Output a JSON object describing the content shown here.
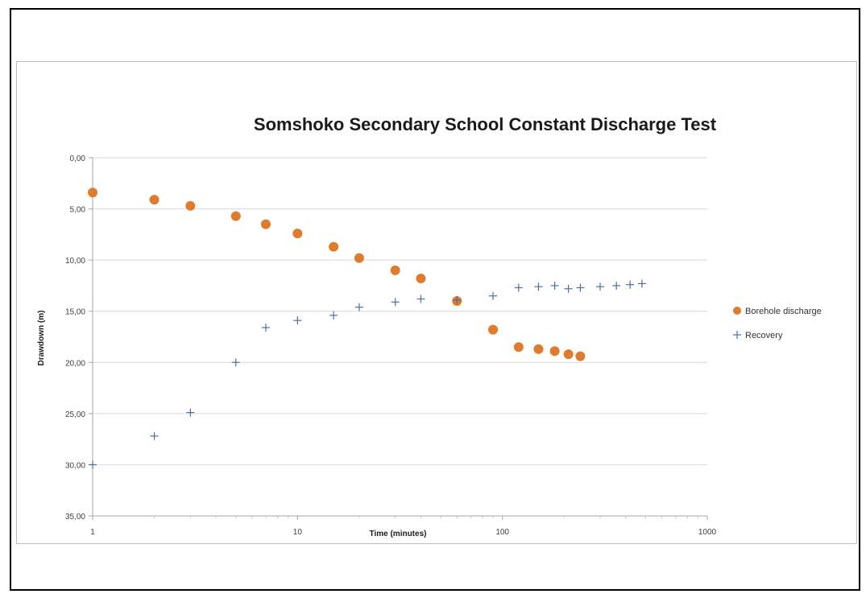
{
  "chart_data": {
    "type": "scatter",
    "title": "Somshoko Secondary School Constant Discharge Test",
    "xlabel": "Time (minutes)",
    "ylabel": "Drawdown (m)",
    "x_scale": "log",
    "xlim": [
      1,
      1000
    ],
    "ylim": [
      0,
      35
    ],
    "y_inverted": true,
    "x_ticks": [
      "1",
      "10",
      "100",
      "1000"
    ],
    "y_ticks": [
      "0,00",
      "5,00",
      "10,00",
      "15,00",
      "20,00",
      "25,00",
      "30,00",
      "35,00"
    ],
    "grid": "horizontal",
    "legend_position": "right",
    "series": [
      {
        "name": "Borehole discharge",
        "marker": "circle",
        "color": "#E07B2E",
        "points": [
          [
            1,
            3.4
          ],
          [
            2,
            4.1
          ],
          [
            3,
            4.7
          ],
          [
            5,
            5.7
          ],
          [
            7,
            6.5
          ],
          [
            10,
            7.4
          ],
          [
            15,
            8.7
          ],
          [
            20,
            9.8
          ],
          [
            30,
            11.0
          ],
          [
            40,
            11.8
          ],
          [
            60,
            14.0
          ],
          [
            90,
            16.8
          ],
          [
            120,
            18.5
          ],
          [
            150,
            18.7
          ],
          [
            180,
            18.9
          ],
          [
            210,
            19.2
          ],
          [
            240,
            19.4
          ]
        ]
      },
      {
        "name": "Recovery",
        "marker": "plus",
        "color": "#4A6FA5",
        "points": [
          [
            1,
            30.0
          ],
          [
            2,
            27.2
          ],
          [
            3,
            24.9
          ],
          [
            5,
            20.0
          ],
          [
            7,
            16.6
          ],
          [
            10,
            15.9
          ],
          [
            15,
            15.4
          ],
          [
            20,
            14.6
          ],
          [
            30,
            14.1
          ],
          [
            40,
            13.8
          ],
          [
            60,
            13.9
          ],
          [
            90,
            13.5
          ],
          [
            120,
            12.7
          ],
          [
            150,
            12.6
          ],
          [
            180,
            12.5
          ],
          [
            210,
            12.8
          ],
          [
            240,
            12.7
          ],
          [
            300,
            12.6
          ],
          [
            360,
            12.5
          ],
          [
            420,
            12.4
          ],
          [
            480,
            12.3
          ]
        ]
      }
    ]
  }
}
